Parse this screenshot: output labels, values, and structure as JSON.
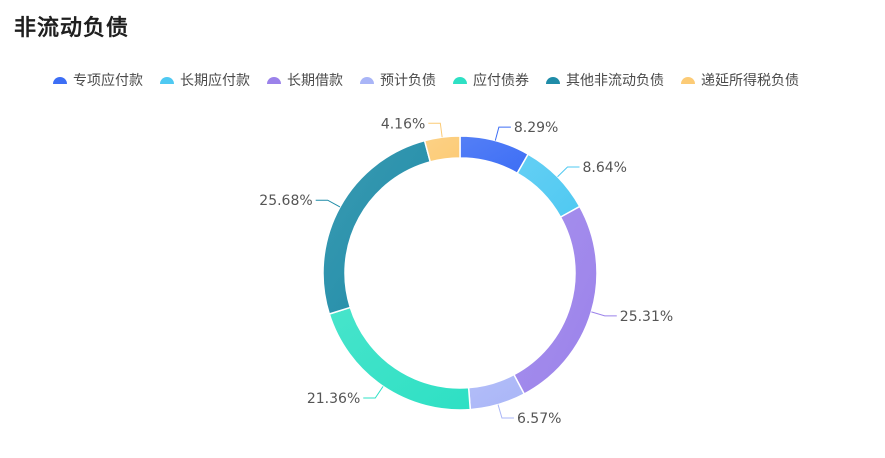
{
  "title": "非流动负债",
  "chart_data": {
    "type": "pie",
    "title": "非流动负债",
    "categories": [
      "专项应付款",
      "长期应付款",
      "长期借款",
      "预计负债",
      "应付债券",
      "其他非流动负债",
      "递延所得税负债"
    ],
    "values": [
      8.29,
      8.64,
      25.31,
      6.57,
      21.36,
      25.68,
      4.16
    ],
    "labels": [
      "8.29%",
      "8.64%",
      "25.31%",
      "6.57%",
      "21.36%",
      "25.68%",
      "4.16%"
    ],
    "unit": "%",
    "colors": [
      "#3d6ef5",
      "#4fc9f2",
      "#9b82ea",
      "#a9b5f7",
      "#2ee0c4",
      "#1f8ca8",
      "#fccb76"
    ],
    "legend_position": "top",
    "donut": true
  }
}
